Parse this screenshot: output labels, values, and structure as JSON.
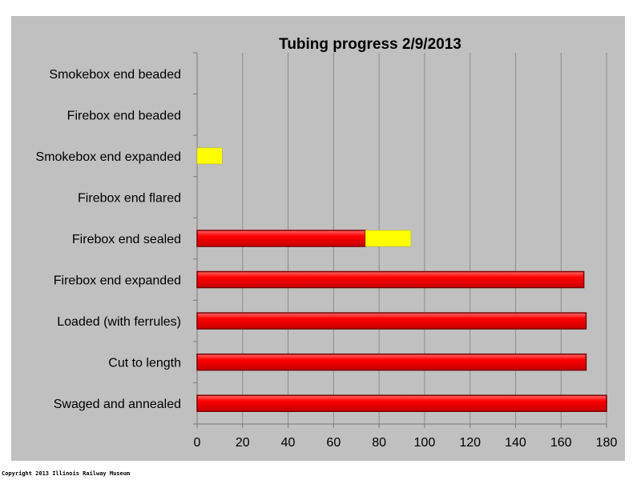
{
  "chart_data": {
    "type": "bar",
    "orientation": "horizontal",
    "stacked": true,
    "title": "Tubing progress 2/9/2013",
    "xlabel": "",
    "ylabel": "",
    "xlim": [
      0,
      180
    ],
    "xticks": [
      0,
      20,
      40,
      60,
      80,
      100,
      120,
      140,
      160,
      180
    ],
    "grid": true,
    "legend": "none",
    "categories": [
      "Smokebox end beaded",
      "Firebox end beaded",
      "Smokebox end expanded",
      "Firebox end flared",
      "Firebox end sealed",
      "Firebox end expanded",
      "Loaded (with ferrules)",
      "Cut to length",
      "Swaged and annealed"
    ],
    "series": [
      {
        "color": "#ff0000",
        "values": [
          0,
          0,
          0,
          0,
          74,
          170,
          171,
          171,
          180
        ]
      },
      {
        "color": "#ffff00",
        "values": [
          0,
          0,
          11,
          0,
          20,
          0,
          0,
          0,
          0
        ]
      }
    ]
  },
  "footer": {
    "copyright": "Copyright 2013 Illinois Railway Museum"
  }
}
